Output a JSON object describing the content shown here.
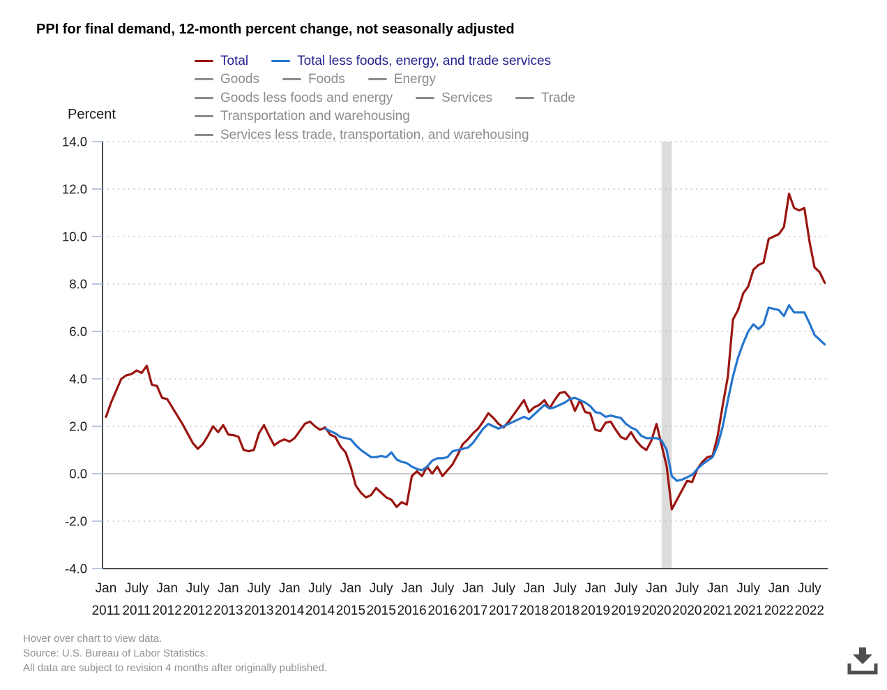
{
  "header": {
    "title": "PPI for final demand, 12-month percent change, not seasonally adjusted"
  },
  "legend": {
    "inactive_color": "#8c8c8c",
    "rows": [
      [
        {
          "label": "Total",
          "active": true,
          "swatch": "#9a1510",
          "text_color": "#23238e"
        },
        {
          "label": "Total less foods, energy, and trade services",
          "active": true,
          "swatch": "#2575cd",
          "text_color": "#23238e"
        }
      ],
      [
        {
          "label": "Goods",
          "active": false
        },
        {
          "label": "Foods",
          "active": false
        },
        {
          "label": "Energy",
          "active": false
        }
      ],
      [
        {
          "label": "Goods less foods and energy",
          "active": false
        },
        {
          "label": "Services",
          "active": false
        },
        {
          "label": "Trade",
          "active": false
        }
      ],
      [
        {
          "label": "Transportation and warehousing",
          "active": false
        }
      ],
      [
        {
          "label": "Services less trade, transportation, and warehousing",
          "active": false
        }
      ]
    ]
  },
  "chart_data": {
    "type": "line",
    "title": "PPI for final demand, 12-month percent change, not seasonally adjusted",
    "ylabel": "Percent",
    "xlabel": "",
    "ylim": [
      -4.0,
      14.0
    ],
    "ytick_step": 2.0,
    "y_tick_labels": [
      "14.0",
      "12.0",
      "10.0",
      "8.0",
      "6.0",
      "4.0",
      "2.0",
      "0.0",
      "-2.0",
      "-4.0"
    ],
    "grid": "dotted horizontal, solid line at 0",
    "legend_position": "top",
    "x_start": "Jan 2011",
    "x_end": "Oct 2022",
    "x_ticks": [
      {
        "month": "Jan",
        "year": "2011"
      },
      {
        "month": "July",
        "year": "2011"
      },
      {
        "month": "Jan",
        "year": "2012"
      },
      {
        "month": "July",
        "year": "2012"
      },
      {
        "month": "Jan",
        "year": "2013"
      },
      {
        "month": "July",
        "year": "2013"
      },
      {
        "month": "Jan",
        "year": "2014"
      },
      {
        "month": "July",
        "year": "2014"
      },
      {
        "month": "Jan",
        "year": "2015"
      },
      {
        "month": "July",
        "year": "2015"
      },
      {
        "month": "Jan",
        "year": "2016"
      },
      {
        "month": "July",
        "year": "2016"
      },
      {
        "month": "Jan",
        "year": "2017"
      },
      {
        "month": "July",
        "year": "2017"
      },
      {
        "month": "Jan",
        "year": "2018"
      },
      {
        "month": "July",
        "year": "2018"
      },
      {
        "month": "Jan",
        "year": "2019"
      },
      {
        "month": "July",
        "year": "2019"
      },
      {
        "month": "Jan",
        "year": "2020"
      },
      {
        "month": "July",
        "year": "2020"
      },
      {
        "month": "Jan",
        "year": "2021"
      },
      {
        "month": "July",
        "year": "2021"
      },
      {
        "month": "Jan",
        "year": "2022"
      },
      {
        "month": "July",
        "year": "2022"
      }
    ],
    "recession_band": {
      "label": "recession Feb 2020 - Apr 2020",
      "start_month_index": 109,
      "end_month_index": 111,
      "color": "#dcdcdc"
    },
    "series": [
      {
        "name": "Total",
        "color": "#9a1510",
        "start_month_index": 0,
        "start": "Jan 2011",
        "values": [
          2.4,
          3.0,
          3.5,
          4.0,
          4.15,
          4.2,
          4.35,
          4.25,
          4.55,
          3.75,
          3.7,
          3.2,
          3.15,
          2.8,
          2.45,
          2.1,
          1.7,
          1.3,
          1.05,
          1.25,
          1.6,
          2.0,
          1.75,
          2.05,
          1.65,
          1.63,
          1.55,
          1.0,
          0.95,
          1.0,
          1.7,
          2.05,
          1.6,
          1.2,
          1.35,
          1.45,
          1.35,
          1.5,
          1.8,
          2.1,
          2.2,
          2.0,
          1.85,
          1.95,
          1.65,
          1.55,
          1.15,
          0.9,
          0.3,
          -0.5,
          -0.8,
          -1.0,
          -0.9,
          -0.6,
          -0.8,
          -1.0,
          -1.1,
          -1.4,
          -1.2,
          -1.3,
          -0.1,
          0.1,
          -0.1,
          0.3,
          0.0,
          0.3,
          -0.1,
          0.15,
          0.4,
          0.8,
          1.25,
          1.45,
          1.7,
          1.9,
          2.2,
          2.55,
          2.35,
          2.1,
          1.95,
          2.2,
          2.5,
          2.8,
          3.1,
          2.6,
          2.8,
          2.9,
          3.1,
          2.75,
          3.1,
          3.4,
          3.45,
          3.2,
          2.65,
          3.1,
          2.6,
          2.55,
          1.85,
          1.8,
          2.15,
          2.2,
          1.85,
          1.55,
          1.45,
          1.75,
          1.4,
          1.15,
          1.0,
          1.4,
          2.1,
          1.2,
          0.3,
          -1.5,
          -1.1,
          -0.7,
          -0.3,
          -0.35,
          0.2,
          0.5,
          0.7,
          0.75,
          1.6,
          2.9,
          4.1,
          6.5,
          6.9,
          7.6,
          7.9,
          8.6,
          8.8,
          8.9,
          9.9,
          10.0,
          10.1,
          10.4,
          11.8,
          11.2,
          11.1,
          11.2,
          9.8,
          8.7,
          8.5,
          8.05
        ]
      },
      {
        "name": "Total less foods, energy, and trade services",
        "color": "#2575cd",
        "start_month_index": 43,
        "start": "Aug 2014",
        "values": [
          1.9,
          1.8,
          1.7,
          1.55,
          1.5,
          1.45,
          1.2,
          1.0,
          0.85,
          0.7,
          0.7,
          0.75,
          0.7,
          0.9,
          0.6,
          0.5,
          0.45,
          0.3,
          0.2,
          0.15,
          0.3,
          0.55,
          0.65,
          0.65,
          0.7,
          0.95,
          1.0,
          1.05,
          1.1,
          1.3,
          1.6,
          1.9,
          2.1,
          2.0,
          1.9,
          2.0,
          2.1,
          2.2,
          2.3,
          2.4,
          2.3,
          2.5,
          2.7,
          2.9,
          2.75,
          2.8,
          2.9,
          3.0,
          3.15,
          3.2,
          3.1,
          3.0,
          2.85,
          2.6,
          2.55,
          2.4,
          2.45,
          2.4,
          2.35,
          2.1,
          1.95,
          1.85,
          1.6,
          1.5,
          1.5,
          1.5,
          1.4,
          1.0,
          -0.1,
          -0.3,
          -0.25,
          -0.15,
          -0.05,
          0.2,
          0.4,
          0.55,
          0.7,
          1.2,
          2.0,
          3.1,
          4.1,
          4.9,
          5.5,
          6.0,
          6.3,
          6.1,
          6.3,
          7.0,
          6.95,
          6.9,
          6.65,
          7.1,
          6.8,
          6.8,
          6.8,
          6.35,
          5.85,
          5.65,
          5.45
        ]
      }
    ],
    "inactive_series": [
      "Goods",
      "Foods",
      "Energy",
      "Goods less foods and energy",
      "Services",
      "Trade",
      "Transportation and warehousing",
      "Services less trade, transportation, and warehousing"
    ]
  },
  "footer": {
    "lines": [
      "Hover over chart to view data.",
      "Source: U.S. Bureau of Labor Statistics.",
      "All data are subject to revision 4 months after originally published."
    ]
  }
}
